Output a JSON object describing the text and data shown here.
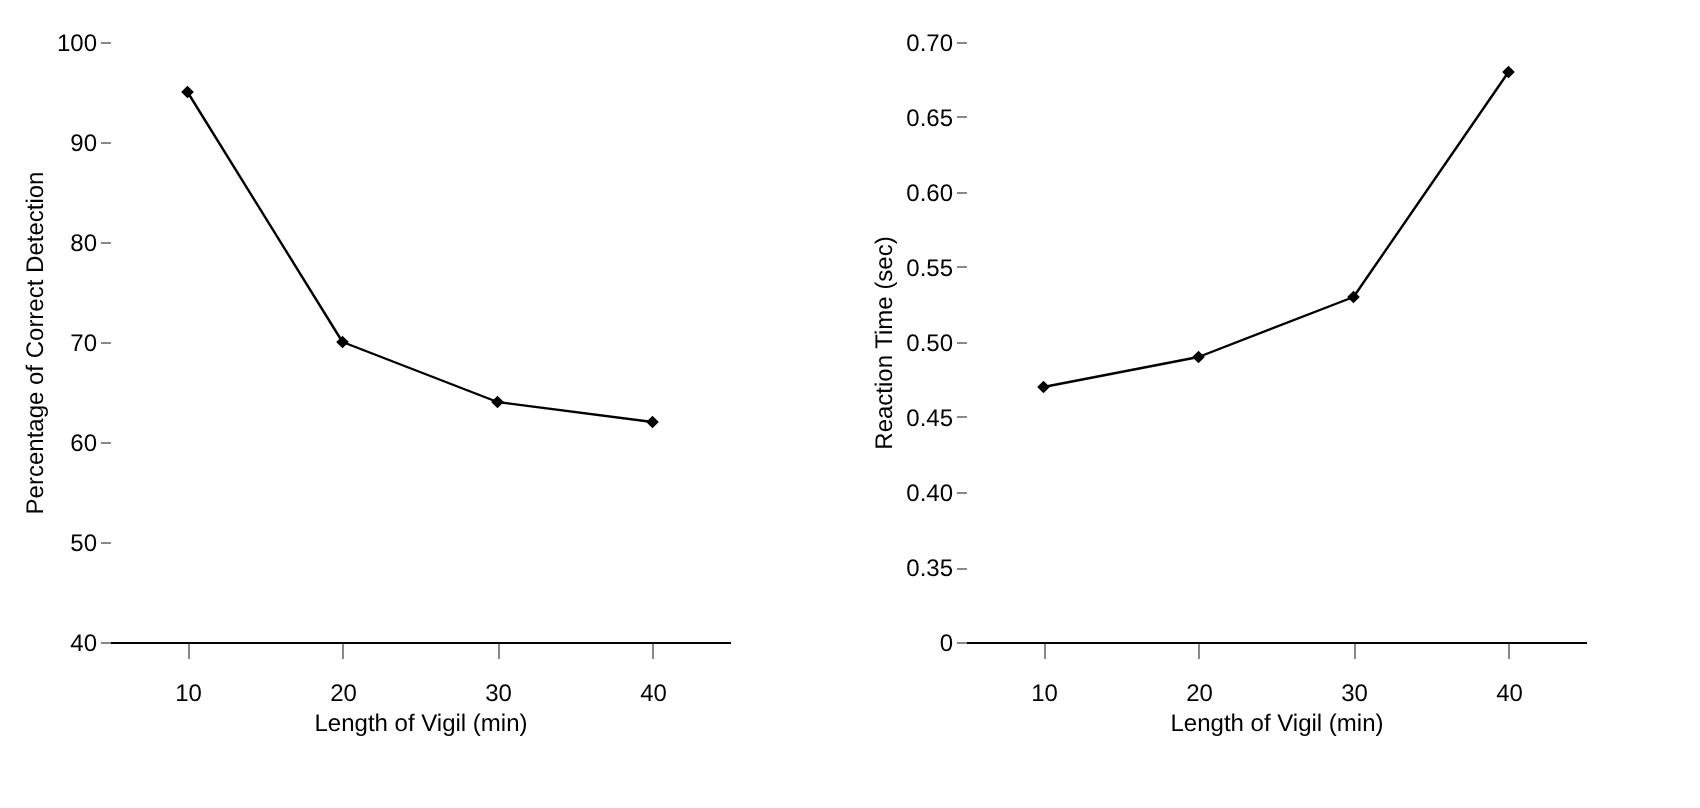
{
  "chart_data": [
    {
      "type": "line",
      "xlabel": "Length of Vigil (min)",
      "ylabel": "Percentage of Correct Detection",
      "x": [
        10,
        20,
        30,
        40
      ],
      "series": [
        {
          "color": "#000000",
          "values": [
            95,
            70,
            64,
            62
          ]
        }
      ],
      "xlim": [
        5,
        45
      ],
      "xticks": [
        10,
        20,
        30,
        40
      ],
      "ylim": [
        40,
        100
      ],
      "yticks": [
        40,
        50,
        60,
        70,
        80,
        90,
        100
      ],
      "marker": "diamond",
      "grid": false
    },
    {
      "type": "line",
      "xlabel": "Length of Vigil (min)",
      "ylabel": "Reaction Time (sec)",
      "x": [
        10,
        20,
        30,
        40
      ],
      "series": [
        {
          "color": "#000000",
          "values": [
            0.47,
            0.49,
            0.53,
            0.68
          ]
        }
      ],
      "xlim": [
        5,
        45
      ],
      "xticks": [
        10,
        20,
        30,
        40
      ],
      "ylim": [
        0.3,
        0.7
      ],
      "yticks": [
        {
          "value": 0.3,
          "label": "0"
        },
        {
          "value": 0.35,
          "label": "0.35"
        },
        {
          "value": 0.4,
          "label": "0.40"
        },
        {
          "value": 0.45,
          "label": "0.45"
        },
        {
          "value": 0.5,
          "label": "0.50"
        },
        {
          "value": 0.55,
          "label": "0.55"
        },
        {
          "value": 0.6,
          "label": "0.60"
        },
        {
          "value": 0.65,
          "label": "0.65"
        },
        {
          "value": 0.7,
          "label": "0.70"
        }
      ],
      "marker": "diamond",
      "grid": false
    }
  ]
}
